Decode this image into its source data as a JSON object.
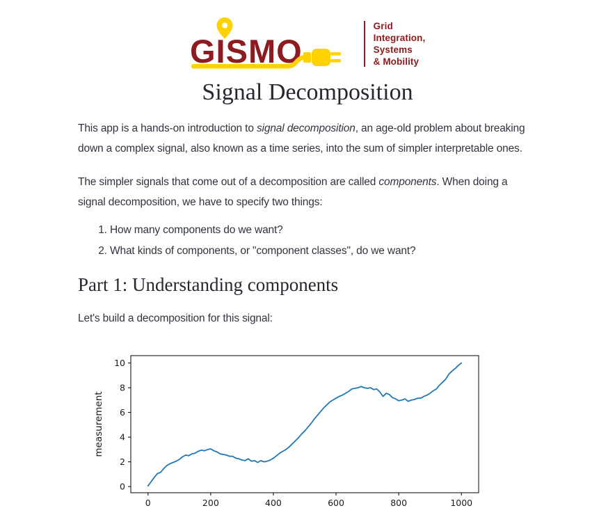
{
  "logo": {
    "wordmark": "GISMO",
    "tagline_lines": [
      "Grid",
      "Integration,",
      "Systems",
      "& Mobility"
    ],
    "brand_red": "#8e1b1f",
    "brand_yellow": "#ffd200"
  },
  "header": {
    "title": "Signal Decomposition"
  },
  "intro": {
    "p1_before": "This app is a hands-on introduction to ",
    "p1_italic": "signal decomposition",
    "p1_after": ", an age-old problem about breaking down a complex signal, also known as a time series, into the sum of simpler interpretable ones.",
    "p2_before": "The simpler signals that come out of a decomposition are called ",
    "p2_italic": "components",
    "p2_after": ". When doing a signal decomposition, we have to specify two things:",
    "list": [
      "How many components do we want?",
      "What kinds of components, or \"component classes\", do we want?"
    ]
  },
  "part1": {
    "heading": "Part 1: Understanding components",
    "lead": "Let's build a decomposition for this signal:"
  },
  "chart_data": {
    "type": "line",
    "title": "",
    "xlabel": "",
    "ylabel": "measurement",
    "x_start": 0,
    "x_step": 10,
    "x_ticks": [
      0,
      200,
      400,
      600,
      800,
      1000
    ],
    "y_ticks": [
      0,
      2,
      4,
      6,
      8,
      10
    ],
    "xlim": [
      -55,
      1055
    ],
    "ylim": [
      -0.5,
      10.6
    ],
    "grid": false,
    "legend": "none",
    "line_color": "#1f77b4",
    "values": [
      0.05,
      0.4,
      0.75,
      1.05,
      1.15,
      1.45,
      1.7,
      1.85,
      1.95,
      2.05,
      2.2,
      2.4,
      2.55,
      2.5,
      2.65,
      2.7,
      2.85,
      2.95,
      2.9,
      3.0,
      3.05,
      2.9,
      2.8,
      2.65,
      2.6,
      2.55,
      2.45,
      2.45,
      2.3,
      2.25,
      2.15,
      2.1,
      2.25,
      2.05,
      2.1,
      1.95,
      2.1,
      2.0,
      2.05,
      2.15,
      2.3,
      2.5,
      2.7,
      2.85,
      3.0,
      3.2,
      3.45,
      3.7,
      3.95,
      4.25,
      4.5,
      4.8,
      5.1,
      5.45,
      5.75,
      6.05,
      6.35,
      6.6,
      6.85,
      7.0,
      7.15,
      7.3,
      7.4,
      7.55,
      7.7,
      7.9,
      7.95,
      8.0,
      8.1,
      8.0,
      7.95,
      8.0,
      7.85,
      7.9,
      7.65,
      7.3,
      7.55,
      7.45,
      7.2,
      7.1,
      6.95,
      7.0,
      7.1,
      6.9,
      7.0,
      7.05,
      7.15,
      7.15,
      7.3,
      7.4,
      7.55,
      7.75,
      7.9,
      8.2,
      8.45,
      8.7,
      9.1,
      9.35,
      9.55,
      9.8,
      10.0
    ]
  }
}
